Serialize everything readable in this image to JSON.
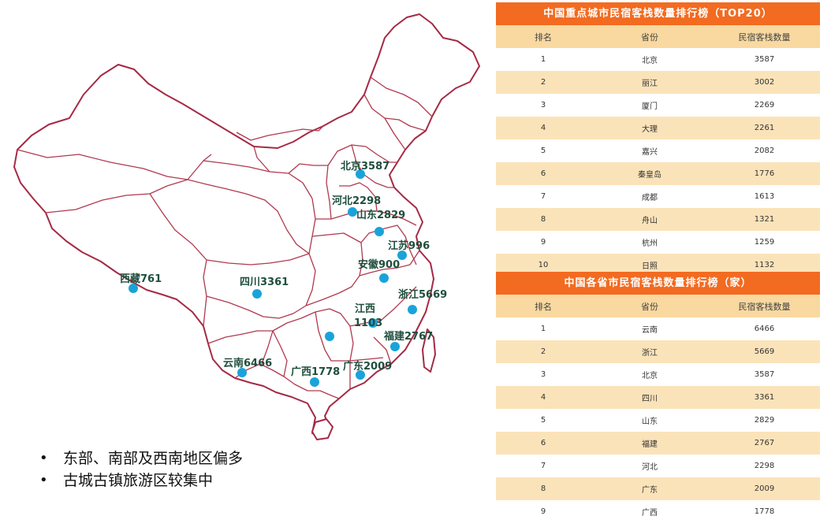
{
  "map": {
    "labels": {
      "beijing": "北京3587",
      "hebei": "河北2298",
      "shandong": "山东2829",
      "jiangsu": "江苏996",
      "anhui": "安徽900",
      "zhejiang": "浙江5669",
      "jiangxi_line1": "江西",
      "jiangxi_line2": "1103",
      "fujian": "福建2767",
      "guangdong": "广东2009",
      "guangxi": "广西1778",
      "yunnan": "云南6466",
      "sichuan": "四川3361",
      "tibet": "西藏761"
    },
    "dot_color": "#1aa3d9",
    "border_color": "#b0394f"
  },
  "bullets": [
    "东部、南部及西南地区偏多",
    "古城古镇旅游区较集中"
  ],
  "table1": {
    "title": "中国重点城市民宿客栈数量排行榜（TOP20）",
    "headers": [
      "排名",
      "省份",
      "民宿客栈数量"
    ],
    "rows": [
      [
        "1",
        "北京",
        "3587"
      ],
      [
        "2",
        "丽江",
        "3002"
      ],
      [
        "3",
        "厦门",
        "2269"
      ],
      [
        "4",
        "大理",
        "2261"
      ],
      [
        "5",
        "嘉兴",
        "2082"
      ],
      [
        "6",
        "秦皇岛",
        "1776"
      ],
      [
        "7",
        "成都",
        "1613"
      ],
      [
        "8",
        "舟山",
        "1321"
      ],
      [
        "9",
        "杭州",
        "1259"
      ],
      [
        "10",
        "日照",
        "1132"
      ]
    ]
  },
  "table2": {
    "title": "中国各省市民宿客栈数量排行榜（家）",
    "headers": [
      "排名",
      "省份",
      "民宿客栈数量"
    ],
    "rows": [
      [
        "1",
        "云南",
        "6466"
      ],
      [
        "2",
        "浙江",
        "5669"
      ],
      [
        "3",
        "北京",
        "3587"
      ],
      [
        "4",
        "四川",
        "3361"
      ],
      [
        "5",
        "山东",
        "2829"
      ],
      [
        "6",
        "福建",
        "2767"
      ],
      [
        "7",
        "河北",
        "2298"
      ],
      [
        "8",
        "广东",
        "2009"
      ],
      [
        "9",
        "广西",
        "1778"
      ]
    ]
  },
  "colors": {
    "title_bg": "#f26b21",
    "header_bg": "#f9d9a0",
    "row_alt_bg": "#fbe3b9"
  }
}
